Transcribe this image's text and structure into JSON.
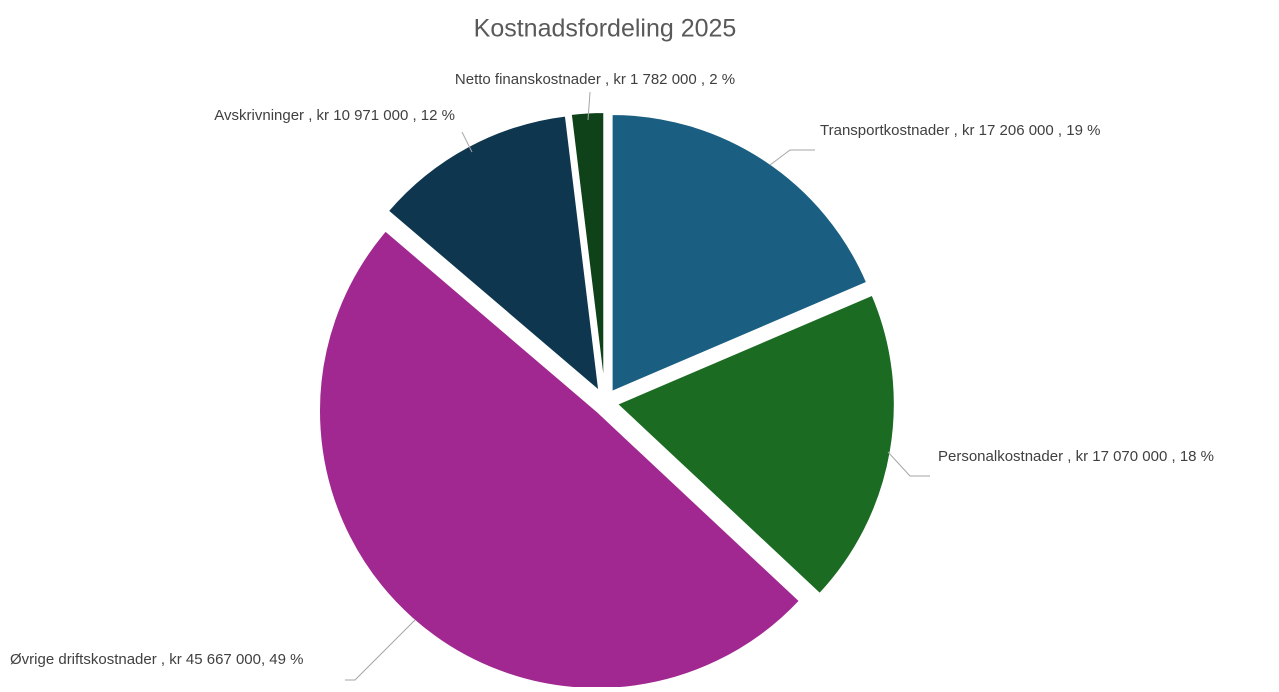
{
  "chart_data": {
    "type": "pie",
    "title": "Kostnadsfordeling 2025",
    "values": [
      17206000,
      17070000,
      45667000,
      10971000,
      1782000
    ],
    "value_labels": [
      "Transportkostnader , kr 17 206 000 , 19 %",
      "Personalkostnader , kr 17 070 000 , 18 %",
      "Øvrige driftskostnader , kr 45 667 000, 49 %",
      "Avskrivninger , kr 10 971 000 , 12 %",
      "Netto finanskostnader , kr 1 782 000 , 2 %"
    ],
    "colors": [
      "#1a5e82",
      "#1b6b23",
      "#a02890",
      "#0e374f",
      "#0f4219"
    ]
  }
}
